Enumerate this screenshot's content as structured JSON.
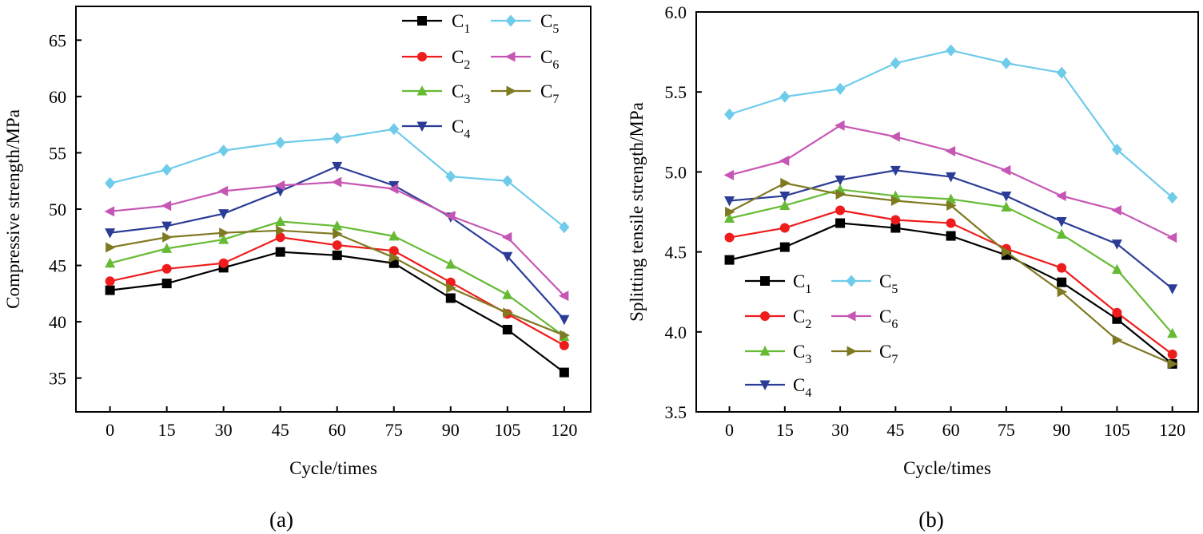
{
  "colors": {
    "C1": "#000000",
    "C2": "#ee1c1c",
    "C3": "#66bb34",
    "C4": "#2b3c96",
    "C5": "#6ecbea",
    "C6": "#c656b4",
    "C7": "#7f7a22"
  },
  "markers": {
    "C1": "square",
    "C2": "circle",
    "C3": "triangle-up",
    "C4": "triangle-down",
    "C5": "diamond",
    "C6": "triangle-left",
    "C7": "triangle-right"
  },
  "chart_data": [
    {
      "type": "line",
      "panel": "a",
      "caption": "(a)",
      "xlabel": "Cycle/times",
      "ylabel": "Compressive strength/MPa",
      "x": [
        0,
        15,
        30,
        45,
        60,
        75,
        90,
        105,
        120
      ],
      "x_tick_labels": [
        "0",
        "15",
        "30",
        "45",
        "60",
        "75",
        "90",
        "105",
        "120"
      ],
      "xlim": [
        -9,
        127
      ],
      "ylim": [
        32,
        68
      ],
      "y_ticks": [
        35,
        40,
        45,
        50,
        55,
        60,
        65
      ],
      "y_tick_labels": [
        "35",
        "40",
        "45",
        "50",
        "55",
        "60",
        "65"
      ],
      "legend_position": "top-right",
      "series": [
        {
          "name": "C",
          "sub": "1",
          "key": "C1",
          "values": [
            42.8,
            43.4,
            44.8,
            46.2,
            45.9,
            45.2,
            42.1,
            39.3,
            35.5
          ]
        },
        {
          "name": "C",
          "sub": "2",
          "key": "C2",
          "values": [
            43.6,
            44.7,
            45.2,
            47.5,
            46.8,
            46.3,
            43.5,
            40.7,
            37.9
          ]
        },
        {
          "name": "C",
          "sub": "3",
          "key": "C3",
          "values": [
            45.2,
            46.5,
            47.3,
            48.9,
            48.5,
            47.6,
            45.1,
            42.4,
            38.7
          ]
        },
        {
          "name": "C",
          "sub": "4",
          "key": "C4",
          "values": [
            47.9,
            48.5,
            49.6,
            51.6,
            53.8,
            52.1,
            49.3,
            45.8,
            40.2
          ]
        },
        {
          "name": "C",
          "sub": "5",
          "key": "C5",
          "values": [
            52.3,
            53.5,
            55.2,
            55.9,
            56.3,
            57.1,
            52.9,
            52.5,
            48.4
          ]
        },
        {
          "name": "C",
          "sub": "6",
          "key": "C6",
          "values": [
            49.8,
            50.3,
            51.6,
            52.1,
            52.4,
            51.8,
            49.4,
            47.5,
            42.3
          ]
        },
        {
          "name": "C",
          "sub": "7",
          "key": "C7",
          "values": [
            46.6,
            47.5,
            47.9,
            48.1,
            47.8,
            45.7,
            43.0,
            40.8,
            38.8
          ]
        }
      ]
    },
    {
      "type": "line",
      "panel": "b",
      "caption": "(b)",
      "xlabel": "Cycle/times",
      "ylabel": "Splitting tensile strength/MPa",
      "x": [
        0,
        15,
        30,
        45,
        60,
        75,
        90,
        105,
        120
      ],
      "x_tick_labels": [
        "0",
        "15",
        "30",
        "45",
        "60",
        "75",
        "90",
        "105",
        "120"
      ],
      "xlim": [
        -9,
        127
      ],
      "ylim": [
        3.5,
        6.0
      ],
      "y_ticks": [
        3.5,
        4.0,
        4.5,
        5.0,
        5.5,
        6.0
      ],
      "y_tick_labels": [
        "3.5",
        "4.0",
        "4.5",
        "5.0",
        "5.5",
        "6.0"
      ],
      "legend_position": "bottom-left",
      "series": [
        {
          "name": "C",
          "sub": "1",
          "key": "C1",
          "values": [
            4.45,
            4.53,
            4.68,
            4.65,
            4.6,
            4.48,
            4.31,
            4.08,
            3.8
          ]
        },
        {
          "name": "C",
          "sub": "2",
          "key": "C2",
          "values": [
            4.59,
            4.65,
            4.76,
            4.7,
            4.68,
            4.52,
            4.4,
            4.12,
            3.86
          ]
        },
        {
          "name": "C",
          "sub": "3",
          "key": "C3",
          "values": [
            4.71,
            4.79,
            4.89,
            4.85,
            4.83,
            4.78,
            4.61,
            4.39,
            3.99
          ]
        },
        {
          "name": "C",
          "sub": "4",
          "key": "C4",
          "values": [
            4.82,
            4.85,
            4.95,
            5.01,
            4.97,
            4.85,
            4.69,
            4.55,
            4.27
          ]
        },
        {
          "name": "C",
          "sub": "5",
          "key": "C5",
          "values": [
            5.36,
            5.47,
            5.52,
            5.68,
            5.76,
            5.68,
            5.62,
            5.14,
            4.84
          ]
        },
        {
          "name": "C",
          "sub": "6",
          "key": "C6",
          "values": [
            4.98,
            5.07,
            5.29,
            5.22,
            5.13,
            5.01,
            4.85,
            4.76,
            4.59
          ]
        },
        {
          "name": "C",
          "sub": "7",
          "key": "C7",
          "values": [
            4.75,
            4.93,
            4.86,
            4.82,
            4.79,
            4.5,
            4.25,
            3.95,
            3.8
          ]
        }
      ]
    }
  ]
}
